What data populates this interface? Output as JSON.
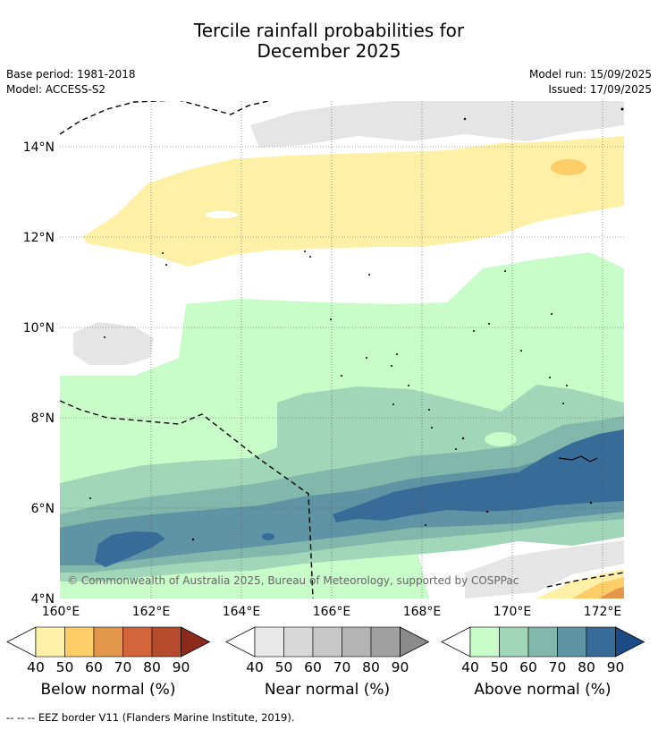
{
  "title_line1": "Tercile rainfall probabilities for",
  "title_line2": "December 2025",
  "base_period": "Base period: 1981-2018",
  "model": "Model: ACCESS-S2",
  "model_run": "Model run: 15/09/2025",
  "issued": "Issued: 17/09/2025",
  "lat_labels": [
    "14°N",
    "12°N",
    "10°N",
    "8°N",
    "6°N",
    "4°N"
  ],
  "lon_labels": [
    "160°E",
    "162°E",
    "164°E",
    "166°E",
    "168°E",
    "170°E",
    "172°E"
  ],
  "copyright": "© Commonwealth of Australia 2025, Bureau of Meteorology, supported by COSPPac",
  "colorbars": [
    {
      "label": "Below normal (%)",
      "ticks": [
        "40",
        "50",
        "60",
        "70",
        "80",
        "90"
      ],
      "colors": [
        "#fff0a8",
        "#fecd68",
        "#e3974a",
        "#d2663a",
        "#b54a2c",
        "#8c2a1c"
      ]
    },
    {
      "label": "Near normal (%)",
      "ticks": [
        "40",
        "50",
        "60",
        "70",
        "80",
        "90"
      ],
      "colors": [
        "#e8e8e8",
        "#d8d8d8",
        "#c8c8c8",
        "#b4b4b4",
        "#a0a0a0",
        "#8a8a8a"
      ]
    },
    {
      "label": "Above normal (%)",
      "ticks": [
        "40",
        "50",
        "60",
        "70",
        "80",
        "90"
      ],
      "colors": [
        "#c8fcc8",
        "#a2d6b8",
        "#82b8ac",
        "#5e94a4",
        "#386c98",
        "#1c4a84"
      ]
    }
  ],
  "footnote": "--  --  -- EEZ border V11 (Flanders Marine Institute, 2019)."
}
